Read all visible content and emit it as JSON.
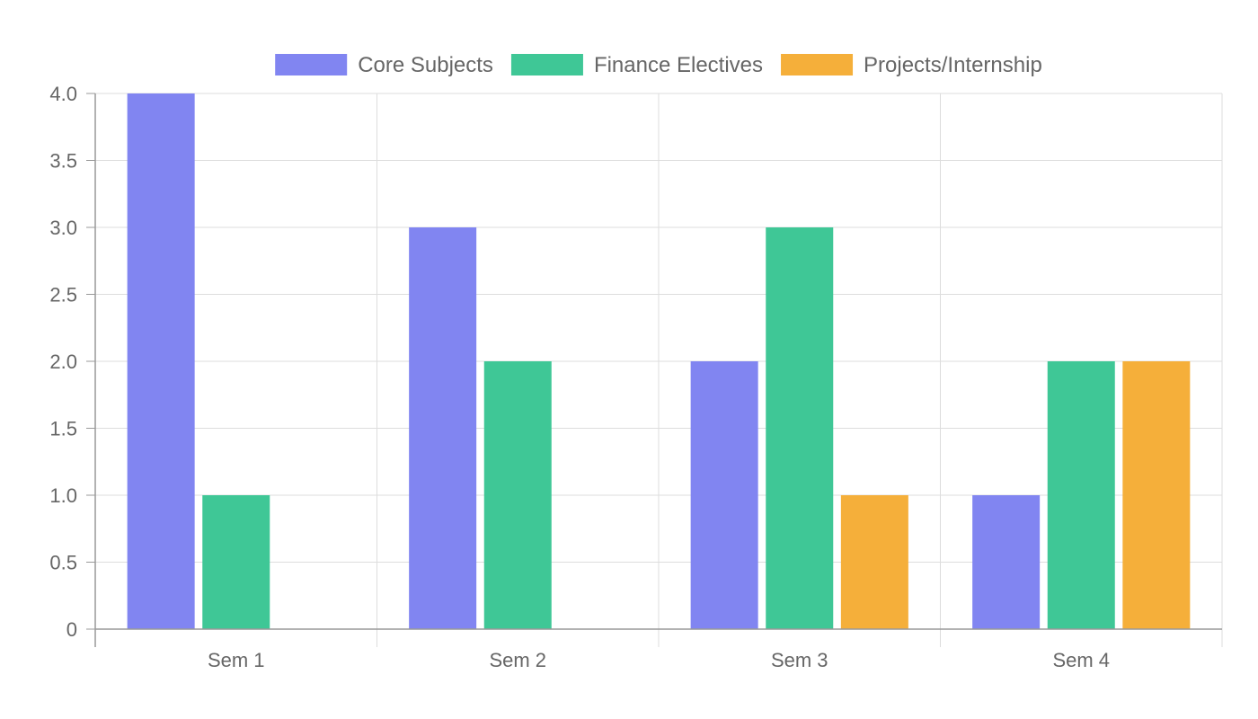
{
  "chart_data": {
    "type": "bar",
    "categories": [
      "Sem 1",
      "Sem 2",
      "Sem 3",
      "Sem 4"
    ],
    "series": [
      {
        "name": "Core Subjects",
        "values": [
          4,
          3,
          2,
          1
        ],
        "color": "#8185f1"
      },
      {
        "name": "Finance Electives",
        "values": [
          1,
          2,
          3,
          2
        ],
        "color": "#3fc796"
      },
      {
        "name": "Projects/Internship",
        "values": [
          0,
          0,
          1,
          2
        ],
        "color": "#f5af3a"
      }
    ],
    "y_ticks": [
      "0",
      "0.5",
      "1.0",
      "1.5",
      "2.0",
      "2.5",
      "3.0",
      "3.5",
      "4.0"
    ],
    "ylim": [
      0,
      4
    ],
    "grid": true,
    "legend_position": "top-center",
    "axis_color": "#999999",
    "grid_color": "#dddddd"
  }
}
